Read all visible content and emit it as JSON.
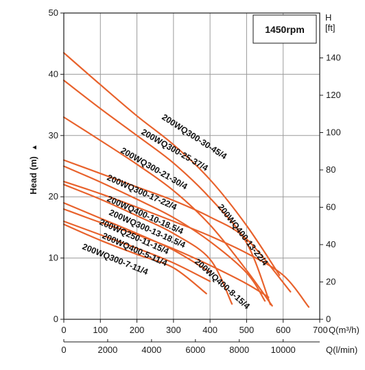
{
  "chart_data": {
    "type": "line",
    "title": "1450rpm",
    "ylabel": "Head (m)",
    "ylabel_arrow": "▲",
    "y2_label": "H",
    "y2_unit": "[ft]",
    "x_unit_primary": "Q(m³/h)",
    "x_unit_secondary": "Q(l/min)",
    "xlim": [
      0,
      700
    ],
    "ylim": [
      0,
      50
    ],
    "grid": true,
    "x_ticks": [
      0,
      100,
      200,
      300,
      400,
      500,
      600,
      700
    ],
    "x_tick_labels": [
      "0",
      "100",
      "200",
      "300",
      "400",
      "500",
      "600",
      "700"
    ],
    "y_ticks": [
      0,
      10,
      20,
      30,
      40,
      50
    ],
    "y_tick_labels": [
      "0",
      "10",
      "20",
      "30",
      "40",
      "50"
    ],
    "ft_ticks": [
      0,
      20,
      40,
      60,
      80,
      100,
      120,
      140
    ],
    "ft_tick_labels": [
      "0",
      "20",
      "40",
      "60",
      "80",
      "100",
      "120",
      "140"
    ],
    "lpm_ticks": [
      0,
      2000,
      4000,
      6000,
      8000,
      10000
    ],
    "lpm_tick_labels": [
      "0",
      "2000",
      "4000",
      "6000",
      "8000",
      "10000"
    ],
    "series_color": "#e8622c",
    "series": [
      {
        "name": "200WQ300-30-45/4",
        "x": [
          0,
          100,
          200,
          300,
          400,
          500,
          590
        ],
        "y": [
          43.5,
          38.3,
          33.2,
          28.5,
          22.8,
          15.3,
          7.2
        ]
      },
      {
        "name": "200WQ300-25-37/4",
        "x": [
          0,
          100,
          200,
          300,
          400,
          500,
          565
        ],
        "y": [
          39.0,
          34.4,
          30.0,
          25.5,
          19.8,
          12.5,
          2.4
        ]
      },
      {
        "name": "200WQ300-21-30/4",
        "x": [
          0,
          100,
          200,
          300,
          400,
          500,
          570
        ],
        "y": [
          33.0,
          29.2,
          25.3,
          21.0,
          15.4,
          8.0,
          2.2
        ]
      },
      {
        "name": "200WQ400-13-22/4",
        "x": [
          0,
          100,
          200,
          300,
          400,
          500,
          620
        ],
        "y": [
          26.0,
          23.8,
          21.6,
          19.4,
          16.7,
          13.1,
          4.5
        ]
      },
      {
        "name": "200WQ300-17-22/4",
        "x": [
          0,
          100,
          200,
          300,
          400,
          500,
          550
        ],
        "y": [
          25.0,
          22.4,
          19.6,
          16.6,
          12.7,
          7.6,
          3.0
        ]
      },
      {
        "name": "200WQ400-10-18.5/4",
        "x": [
          0,
          100,
          200,
          300,
          400,
          500,
          600,
          670
        ],
        "y": [
          22.5,
          20.5,
          18.3,
          16.0,
          13.6,
          10.8,
          7.2,
          2.0
        ]
      },
      {
        "name": "200WQ300-13-18.5/4",
        "x": [
          0,
          100,
          200,
          300,
          400,
          460
        ],
        "y": [
          22.0,
          19.6,
          16.9,
          14.0,
          9.8,
          2.5
        ]
      },
      {
        "name": "200WQ250-11-15/4",
        "x": [
          0,
          100,
          200,
          300,
          400
        ],
        "y": [
          19.0,
          16.5,
          14.0,
          11.3,
          7.7
        ]
      },
      {
        "name": "200WQ400-8-15/4",
        "x": [
          0,
          100,
          200,
          300,
          400,
          500,
          560
        ],
        "y": [
          18.0,
          15.8,
          13.8,
          11.5,
          8.8,
          5.8,
          3.6
        ]
      },
      {
        "name": "200WQ400-5-11/4",
        "x": [
          0,
          100,
          200,
          300,
          400
        ],
        "y": [
          16.0,
          13.8,
          11.6,
          9.2,
          6.2
        ]
      },
      {
        "name": "200WQ300-7-11/4",
        "x": [
          0,
          100,
          200,
          300,
          390
        ],
        "y": [
          15.5,
          12.9,
          10.6,
          8.4,
          4.2
        ]
      }
    ]
  }
}
